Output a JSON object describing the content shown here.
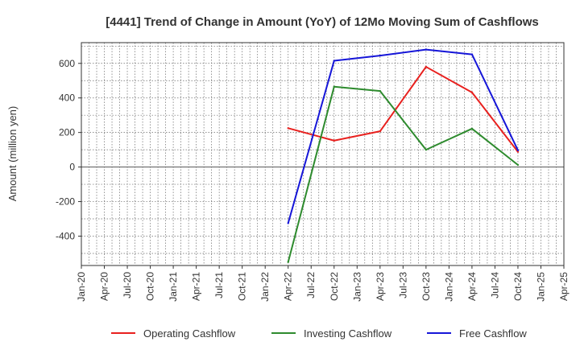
{
  "chart_data": {
    "type": "line",
    "title": "[4441]  Trend of Change in Amount (YoY) of 12Mo Moving Sum of Cashflows",
    "xlabel": "",
    "ylabel": "Amount (million yen)",
    "ylim": [
      -570,
      720
    ],
    "yticks": [
      600,
      400,
      200,
      0,
      -200,
      -400
    ],
    "xtick_labels": [
      "Jan-20",
      "Apr-20",
      "Jul-20",
      "Oct-20",
      "Jan-21",
      "Apr-21",
      "Jul-21",
      "Oct-21",
      "Jan-22",
      "Apr-22",
      "Jul-22",
      "Oct-22",
      "Jan-23",
      "Apr-23",
      "Jul-23",
      "Oct-23",
      "Jan-24",
      "Apr-24",
      "Jul-24",
      "Oct-24",
      "Jan-25",
      "Apr-25"
    ],
    "grid": true,
    "legend_position": "bottom",
    "series": [
      {
        "name": "Operating Cashflow",
        "color": "#e8201e",
        "x": [
          "Apr-22",
          "Oct-22",
          "Apr-23",
          "Oct-23",
          "Apr-24",
          "Oct-24"
        ],
        "values": [
          225,
          153,
          207,
          580,
          432,
          88
        ]
      },
      {
        "name": "Investing Cashflow",
        "color": "#2e8b2e",
        "x": [
          "Apr-22",
          "Oct-22",
          "Apr-23",
          "Oct-23",
          "Apr-24",
          "Oct-24"
        ],
        "values": [
          -550,
          465,
          440,
          100,
          222,
          12
        ]
      },
      {
        "name": "Free Cashflow",
        "color": "#1616d8",
        "x": [
          "Apr-22",
          "Oct-22",
          "Apr-23",
          "Oct-23",
          "Apr-24",
          "Oct-24"
        ],
        "values": [
          -325,
          615,
          645,
          680,
          652,
          97
        ]
      }
    ]
  }
}
